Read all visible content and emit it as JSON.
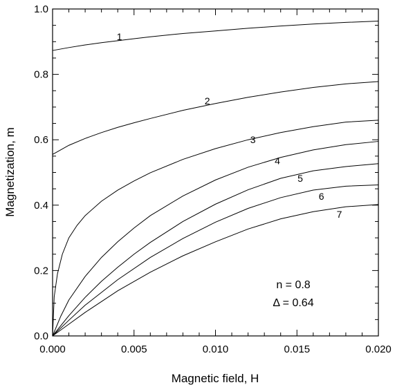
{
  "chart_data": {
    "type": "line",
    "xlabel": "Magnetic  field,  H",
    "ylabel": "Magnetization,  m",
    "xlim": [
      0.0,
      0.02
    ],
    "ylim": [
      0.0,
      1.0
    ],
    "x_ticks": [
      "0.000",
      "0.005",
      "0.010",
      "0.015",
      "0.020"
    ],
    "y_ticks": [
      "0.0",
      "0.2",
      "0.4",
      "0.6",
      "0.8",
      "1.0"
    ],
    "grid": false,
    "annotations": [
      "n = 0.8",
      "Δ = 0.64"
    ],
    "series": [
      {
        "label": "1",
        "label_at": [
          0.0041,
          0.905
        ],
        "x": [
          0.0,
          0.001,
          0.002,
          0.003,
          0.004,
          0.005,
          0.006,
          0.008,
          0.01,
          0.012,
          0.014,
          0.016,
          0.018,
          0.02
        ],
        "y": [
          0.873,
          0.882,
          0.89,
          0.897,
          0.903,
          0.909,
          0.915,
          0.925,
          0.933,
          0.941,
          0.948,
          0.954,
          0.959,
          0.963
        ]
      },
      {
        "label": "2",
        "label_at": [
          0.0095,
          0.708
        ],
        "x": [
          0.0,
          0.001,
          0.002,
          0.003,
          0.004,
          0.005,
          0.006,
          0.008,
          0.01,
          0.012,
          0.014,
          0.016,
          0.018,
          0.02
        ],
        "y": [
          0.555,
          0.583,
          0.604,
          0.622,
          0.638,
          0.652,
          0.665,
          0.69,
          0.711,
          0.73,
          0.746,
          0.76,
          0.771,
          0.778
        ]
      },
      {
        "label": "3",
        "label_at": [
          0.0123,
          0.59
        ],
        "x": [
          0.0,
          0.0001,
          0.0003,
          0.0006,
          0.001,
          0.0015,
          0.002,
          0.003,
          0.004,
          0.005,
          0.006,
          0.008,
          0.01,
          0.012,
          0.014,
          0.016,
          0.018,
          0.02
        ],
        "y": [
          0.0,
          0.12,
          0.19,
          0.25,
          0.3,
          0.338,
          0.368,
          0.412,
          0.446,
          0.474,
          0.499,
          0.54,
          0.573,
          0.6,
          0.622,
          0.64,
          0.654,
          0.66
        ]
      },
      {
        "label": "4",
        "label_at": [
          0.0138,
          0.525
        ],
        "x": [
          0.0,
          0.0005,
          0.001,
          0.002,
          0.003,
          0.004,
          0.005,
          0.006,
          0.008,
          0.01,
          0.012,
          0.014,
          0.016,
          0.018,
          0.02
        ],
        "y": [
          0.0,
          0.06,
          0.11,
          0.182,
          0.24,
          0.288,
          0.33,
          0.368,
          0.428,
          0.477,
          0.516,
          0.546,
          0.569,
          0.585,
          0.595
        ]
      },
      {
        "label": "5",
        "label_at": [
          0.0152,
          0.471
        ],
        "x": [
          0.0,
          0.001,
          0.002,
          0.003,
          0.004,
          0.005,
          0.006,
          0.008,
          0.01,
          0.012,
          0.014,
          0.016,
          0.018,
          0.02
        ],
        "y": [
          0.0,
          0.062,
          0.118,
          0.167,
          0.21,
          0.25,
          0.286,
          0.35,
          0.403,
          0.447,
          0.482,
          0.505,
          0.518,
          0.527
        ]
      },
      {
        "label": "6",
        "label_at": [
          0.0165,
          0.416
        ],
        "x": [
          0.0,
          0.001,
          0.002,
          0.004,
          0.006,
          0.008,
          0.01,
          0.012,
          0.014,
          0.016,
          0.018,
          0.02
        ],
        "y": [
          0.0,
          0.048,
          0.094,
          0.172,
          0.24,
          0.298,
          0.348,
          0.39,
          0.423,
          0.446,
          0.458,
          0.462
        ]
      },
      {
        "label": "7",
        "label_at": [
          0.0176,
          0.362
        ],
        "x": [
          0.0,
          0.001,
          0.002,
          0.004,
          0.006,
          0.008,
          0.01,
          0.012,
          0.014,
          0.016,
          0.018,
          0.02
        ],
        "y": [
          0.0,
          0.036,
          0.072,
          0.138,
          0.195,
          0.245,
          0.288,
          0.327,
          0.358,
          0.38,
          0.395,
          0.402
        ]
      }
    ]
  }
}
